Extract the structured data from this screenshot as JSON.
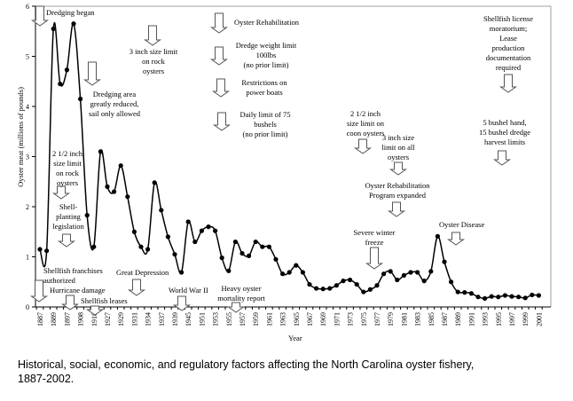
{
  "chart_data": {
    "type": "line",
    "title": "",
    "xlabel": "Year",
    "ylabel": "Oyster meat (millions of pounds)",
    "ylim": [
      0,
      6
    ],
    "yticks": [
      "0",
      "1",
      "2",
      "3",
      "4",
      "5",
      "6"
    ],
    "grid": false,
    "legend": "none",
    "xtick_labels": [
      "1887",
      "1889",
      "1897",
      "1908",
      "1918",
      "1927",
      "1929",
      "1931",
      "1934",
      "1937",
      "1939",
      "1945",
      "1951",
      "1953",
      "1955",
      "1957",
      "1959",
      "1961",
      "1963",
      "1965",
      "1967",
      "1969",
      "1971",
      "1973",
      "1975",
      "1977",
      "1979",
      "1981",
      "1983",
      "1985",
      "1987",
      "1989",
      "1991",
      "1993",
      "1995",
      "1997",
      "1999",
      "2001"
    ],
    "series": [
      {
        "name": "Oyster meat landings",
        "values": [
          1.15,
          1.12,
          5.55,
          4.45,
          4.73,
          5.65,
          4.15,
          1.83,
          1.2,
          3.1,
          2.4,
          2.3,
          2.82,
          2.2,
          1.5,
          1.2,
          1.15,
          2.48,
          1.93,
          1.4,
          1.05,
          0.69,
          1.7,
          1.3,
          1.52,
          1.6,
          1.52,
          0.98,
          0.72,
          1.3,
          1.07,
          1.02,
          1.3,
          1.2,
          1.2,
          0.95,
          0.66,
          0.69,
          0.83,
          0.69,
          0.45,
          0.37,
          0.36,
          0.37,
          0.43,
          0.52,
          0.54,
          0.45,
          0.3,
          0.35,
          0.43,
          0.66,
          0.71,
          0.54,
          0.63,
          0.69,
          0.69,
          0.52,
          0.71,
          1.41,
          0.9,
          0.5,
          0.3,
          0.29,
          0.27,
          0.2,
          0.17,
          0.21,
          0.2,
          0.23,
          0.21,
          0.2,
          0.18,
          0.24,
          0.23
        ]
      }
    ],
    "annotations": [
      {
        "id": "dredging-began",
        "text": "Dredging  began"
      },
      {
        "id": "three-inch-rock",
        "text": "3 inch size limit\non rock\noysters"
      },
      {
        "id": "dredging-reduced",
        "text": "Dredging area\ngreatly reduced,\nsail only allowed"
      },
      {
        "id": "two-half-inch-rock",
        "text": "2 1/2 inch\nsize limit\non rock\noysters"
      },
      {
        "id": "shell-planting",
        "text": "Shell-\nplanting\nlegislation"
      },
      {
        "id": "shellfish-franchises",
        "text": "Shellfish franchises\nauthorized"
      },
      {
        "id": "hurricane",
        "text": "Hurricane damage"
      },
      {
        "id": "shellfish-leases",
        "text": "Shellfish leases"
      },
      {
        "id": "great-depression",
        "text": "Great Depression"
      },
      {
        "id": "world-war-ii",
        "text": "World War II"
      },
      {
        "id": "heavy-mortality",
        "text": "Heavy oyster\nmortality report"
      },
      {
        "id": "oyster-rehab",
        "text": "Oyster Rehabilitation"
      },
      {
        "id": "dredge-weight",
        "text": "Dredge weight limit\n100lbs\n(no prior limit)"
      },
      {
        "id": "power-boats",
        "text": "Restrictions on\npower boats"
      },
      {
        "id": "daily-limit",
        "text": "Daily limit of 75\nbushels\n(no prior limit)"
      },
      {
        "id": "coon-oysters",
        "text": "2 1/2 inch\nsize limit on\ncoon oysters"
      },
      {
        "id": "three-inch-all",
        "text": "3 inch size\nlimit on all\noysters"
      },
      {
        "id": "rehab-expanded",
        "text": "Oyster Rehabilitation\nProgram expanded"
      },
      {
        "id": "winter-freeze",
        "text": "Severe winter\nfreeze"
      },
      {
        "id": "oyster-disease",
        "text": "Oyster Disease"
      },
      {
        "id": "license-moratorium",
        "text": "Shellfish license\nmoratorium;\nLease\nproduction\ndocumentation\nrequired"
      },
      {
        "id": "harvest-limits",
        "text": "5 bushel hand,\n15 bushel dredge\nharvest limits"
      }
    ]
  },
  "caption": {
    "line1": "Historical, social, economic, and regulatory factors affecting the North Carolina oyster fishery,",
    "line2": "1887-2002."
  }
}
